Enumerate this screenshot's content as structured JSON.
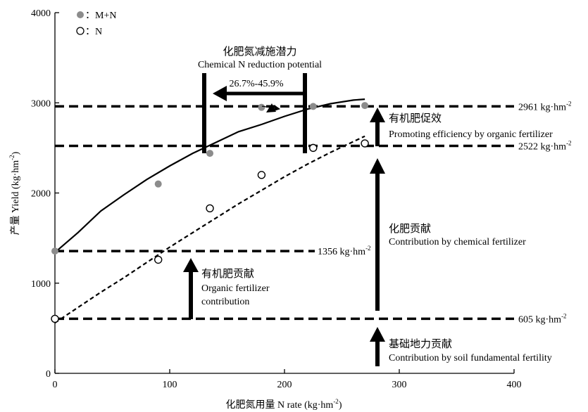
{
  "chart_data": {
    "type": "scatter",
    "xlabel": "化肥氮用量 N rate (kg·hm",
    "xlabel_sup": "-2",
    "xlabel_tail": ")",
    "ylabel": "产量 Yield (kg·hm",
    "ylabel_sup": "-2",
    "ylabel_tail": ")",
    "xlim": [
      0,
      400
    ],
    "ylim": [
      0,
      4000
    ],
    "x_ticks": [
      0,
      100,
      200,
      300,
      400
    ],
    "y_ticks": [
      0,
      1000,
      2000,
      3000,
      4000
    ],
    "grid": false,
    "legend_position": "top-left",
    "series": [
      {
        "name": "M+N",
        "legend_label": "：M+N",
        "marker": "filled-circle",
        "color": "#8c8c8c",
        "x": [
          0,
          90,
          135,
          180,
          225,
          270
        ],
        "y": [
          1356,
          2100,
          2440,
          2950,
          2960,
          2970
        ],
        "fit_x": [
          0,
          20,
          40,
          60,
          80,
          100,
          120,
          140,
          160,
          180,
          200,
          220,
          240,
          260,
          270
        ],
        "fit_y": [
          1340,
          1560,
          1800,
          1980,
          2150,
          2300,
          2440,
          2560,
          2680,
          2760,
          2850,
          2930,
          2990,
          3030,
          3040
        ]
      },
      {
        "name": "N",
        "legend_label": "：N",
        "marker": "open-circle",
        "color": "#000000",
        "x": [
          0,
          90,
          135,
          180,
          225,
          270
        ],
        "y": [
          605,
          1260,
          1830,
          2200,
          2500,
          2550
        ],
        "fit_x": [
          0,
          20,
          40,
          60,
          80,
          100,
          120,
          140,
          160,
          180,
          200,
          220,
          240,
          260,
          270
        ],
        "fit_y": [
          560,
          730,
          900,
          1060,
          1230,
          1400,
          1560,
          1720,
          1880,
          2030,
          2180,
          2320,
          2450,
          2570,
          2630
        ]
      }
    ],
    "reference_lines": [
      {
        "y": 2961,
        "label": "2961 kg·hm",
        "sup": "-2"
      },
      {
        "y": 2522,
        "label": "2522 kg·hm",
        "sup": "-2"
      },
      {
        "y": 1356,
        "label": "1356 kg·hm",
        "sup": "-2"
      },
      {
        "y": 605,
        "label": "605 kg·hm",
        "sup": "-2"
      }
    ],
    "annotations": {
      "reduction_title_cn": "化肥氮减施潜力",
      "reduction_title_en": "Chemical N reduction potential",
      "reduction_range": "26.7%-45.9%",
      "organic_promoting_cn": "有机肥促效",
      "organic_promoting_en": "Promoting efficiency by organic fertilizer",
      "chemical_contribution_cn": "化肥贡献",
      "chemical_contribution_en": "Contribution by chemical fertilizer",
      "organic_contribution_cn": "有机肥贡献",
      "organic_contribution_en_1": "Organic fertilizer",
      "organic_contribution_en_2": "contribution",
      "soil_contribution_cn": "基础地力贡献",
      "soil_contribution_en": "Contribution by soil fundamental fertility"
    }
  }
}
